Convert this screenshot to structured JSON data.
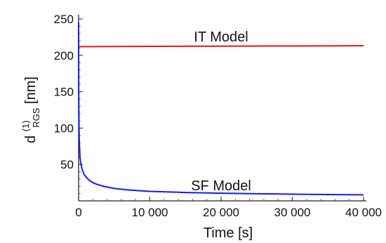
{
  "chart_data": {
    "type": "line",
    "title": "",
    "xlabel": "Time [s]",
    "ylabel": {
      "base": "d",
      "superscript": "(1)",
      "subscript": "RGS",
      "unit": " [nm]"
    },
    "xlim": [
      0,
      40000
    ],
    "ylim": [
      0,
      250
    ],
    "x_ticks": [
      0,
      10000,
      20000,
      30000,
      40000
    ],
    "x_tick_labels": [
      "0",
      "10 000",
      "20 000",
      "30 000",
      "40 000"
    ],
    "y_ticks": [
      50,
      100,
      150,
      200,
      250
    ],
    "y_tick_labels": [
      "50",
      "100",
      "150",
      "200",
      "250"
    ],
    "grid": false,
    "series": [
      {
        "name": "IT Model",
        "color": "#e8141c",
        "points": [
          [
            0,
            212
          ],
          [
            10000,
            212.3
          ],
          [
            20000,
            212.6
          ],
          [
            30000,
            212.9
          ],
          [
            40000,
            213.2
          ]
        ]
      },
      {
        "name": "SF Model",
        "color": "#1a1ae6",
        "points": [
          [
            0,
            245
          ],
          [
            20,
            150
          ],
          [
            50,
            105
          ],
          [
            100,
            80
          ],
          [
            200,
            60
          ],
          [
            300,
            52
          ],
          [
            500,
            43
          ],
          [
            800,
            36
          ],
          [
            1200,
            31
          ],
          [
            1800,
            26
          ],
          [
            2500,
            23
          ],
          [
            3500,
            20
          ],
          [
            5000,
            17
          ],
          [
            7000,
            15
          ],
          [
            10000,
            13
          ],
          [
            15000,
            11.5
          ],
          [
            20000,
            10.5
          ],
          [
            25000,
            9.8
          ],
          [
            30000,
            9.2
          ],
          [
            35000,
            8.7
          ],
          [
            40000,
            8.3
          ]
        ]
      }
    ],
    "annotations": [
      {
        "text": "IT Model",
        "x": 20000,
        "y": 226
      },
      {
        "text": "SF Model",
        "x": 20000,
        "y": 21
      }
    ]
  }
}
